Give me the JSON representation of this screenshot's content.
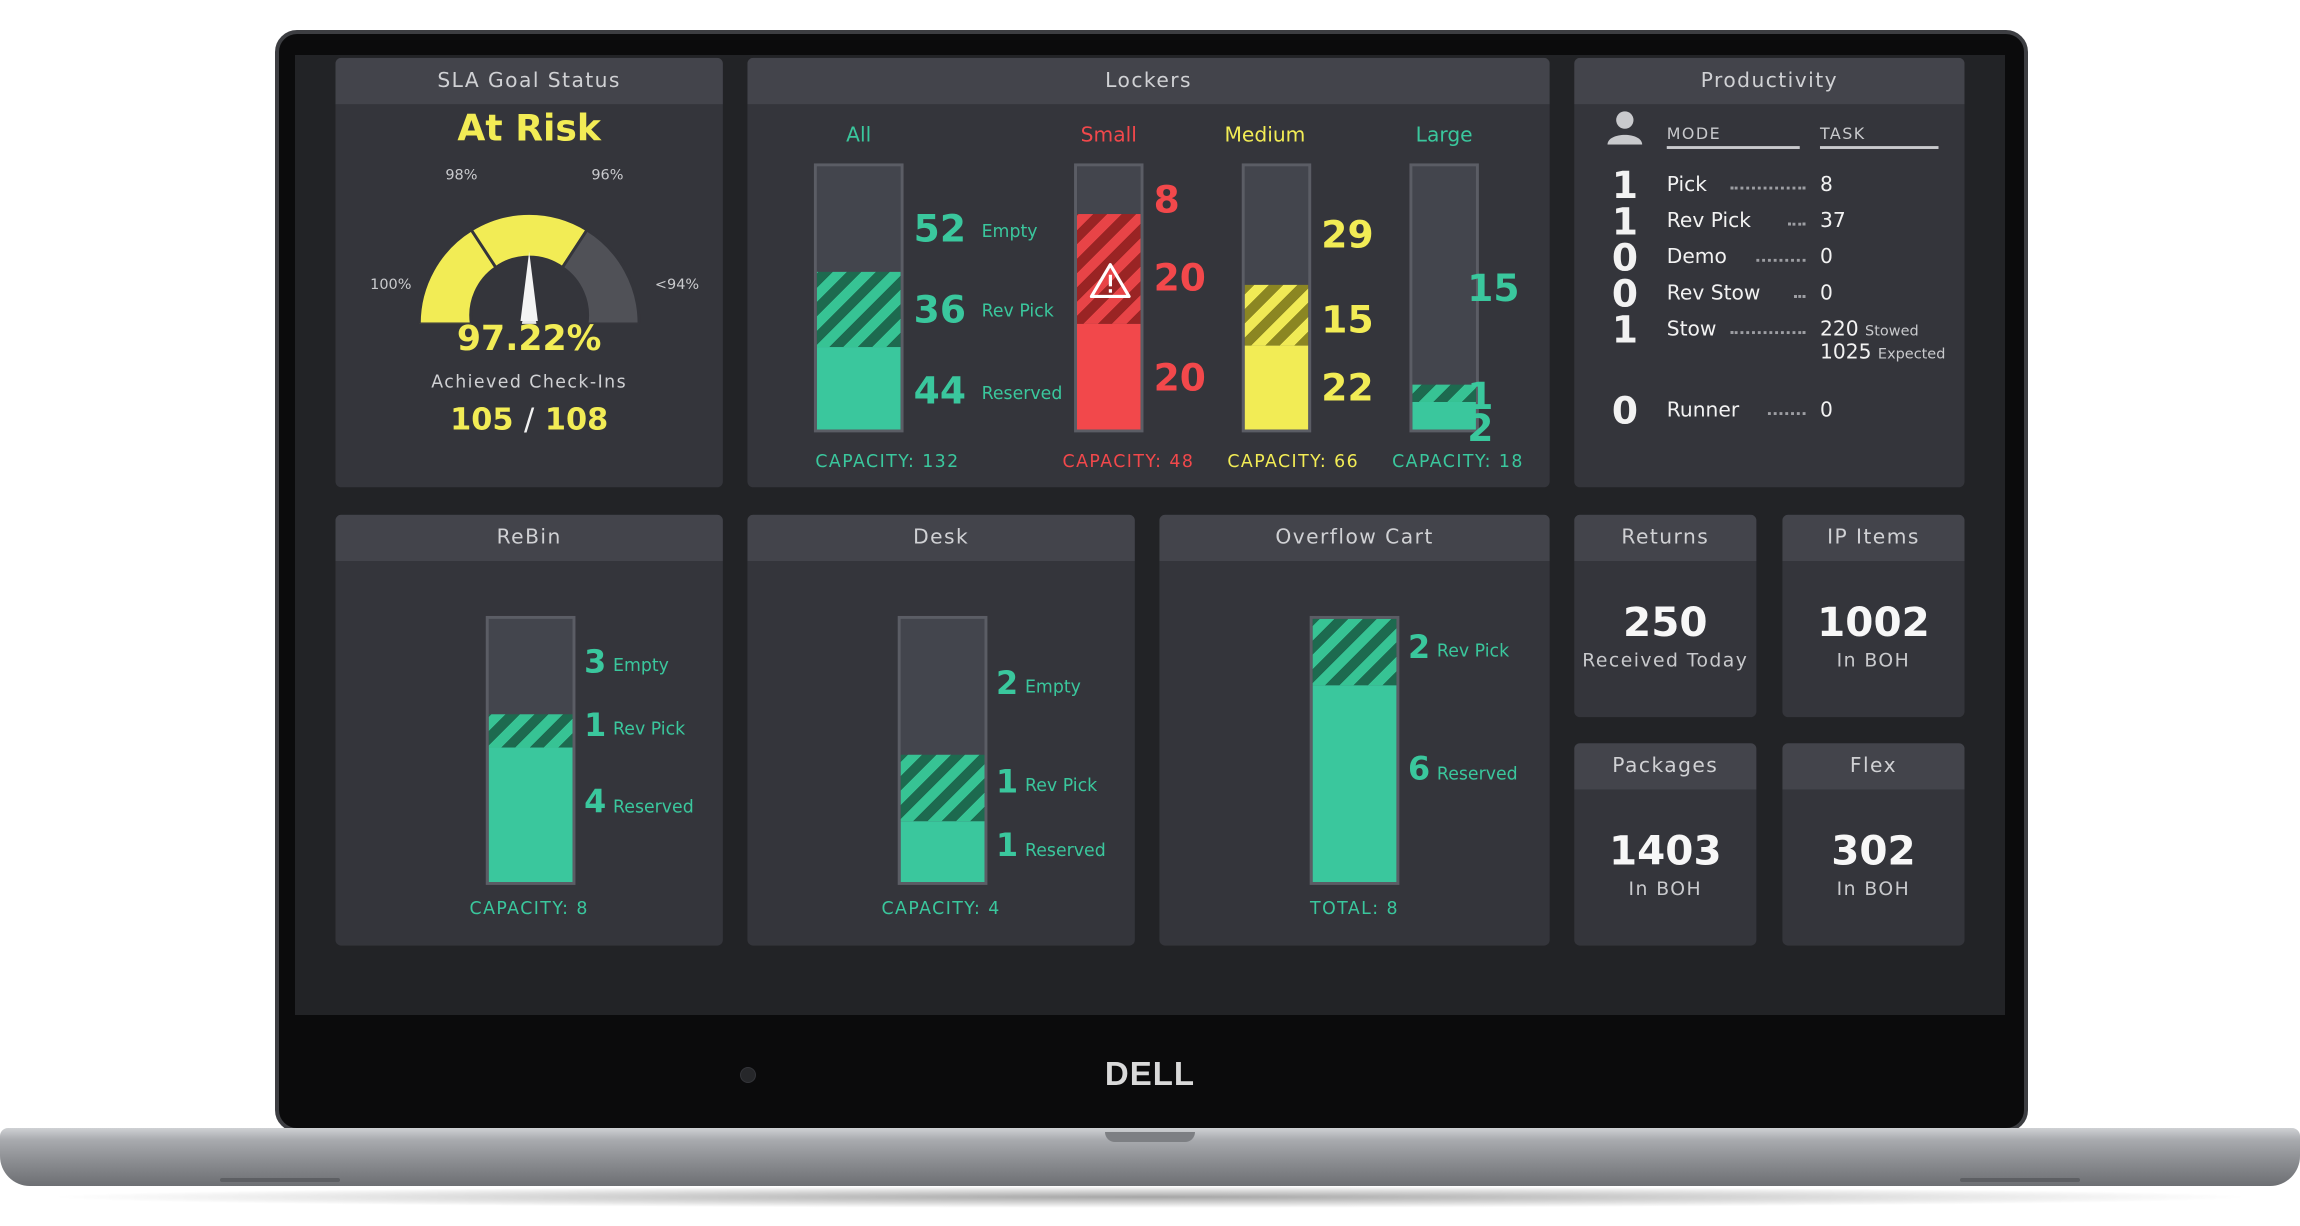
{
  "brand": "DELL",
  "sla": {
    "title": "SLA Goal Status",
    "status": "At Risk",
    "gauge_labels": {
      "p100": "100%",
      "p98": "98%",
      "p96": "96%",
      "p94": "<94%"
    },
    "gauge_value_percent": 97.22,
    "percent": "97.22%",
    "caption": "Achieved Check-Ins",
    "achieved": "105",
    "separator": "/",
    "total": "108",
    "colors": {
      "good": "#f2ec55",
      "warn": "#f2ec55",
      "bad": "#505157"
    }
  },
  "lockers": {
    "title": "Lockers",
    "groups": {
      "all": {
        "name": "All",
        "empty": 52,
        "empty_label": "Empty",
        "revpick": 36,
        "revpick_label": "Rev Pick",
        "reserved": 44,
        "reserved_label": "Reserved",
        "capacity": "CAPACITY: 132"
      },
      "small": {
        "name": "Small",
        "v1": "8",
        "v2": "20",
        "v3": "20",
        "capacity": "CAPACITY: 48"
      },
      "medium": {
        "name": "Medium",
        "v1": "29",
        "v2": "15",
        "v3": "22",
        "capacity": "CAPACITY: 66"
      },
      "large": {
        "name": "Large",
        "v1": "15",
        "v2": "1",
        "v3": "2",
        "capacity": "CAPACITY: 18"
      }
    }
  },
  "productivity": {
    "title": "Productivity",
    "col_mode": "MODE",
    "col_task": "TASK",
    "rows": [
      {
        "count": "1",
        "mode": "Pick",
        "task": "8"
      },
      {
        "count": "1",
        "mode": "Rev Pick",
        "task": "37"
      },
      {
        "count": "0",
        "mode": "Demo",
        "task": "0"
      },
      {
        "count": "0",
        "mode": "Rev Stow",
        "task": "0"
      },
      {
        "count": "1",
        "mode": "Stow",
        "task": "220",
        "task_sub": "Stowed",
        "task2": "1025",
        "task2_sub": "Expected"
      },
      {
        "count": "0",
        "mode": "Runner",
        "task": "0"
      }
    ]
  },
  "rebin": {
    "title": "ReBin",
    "empty": "3",
    "empty_label": "Empty",
    "revpick": "1",
    "revpick_label": "Rev Pick",
    "reserved": "4",
    "reserved_label": "Reserved",
    "capacity": "CAPACITY: 8"
  },
  "desk": {
    "title": "Desk",
    "empty": "2",
    "empty_label": "Empty",
    "revpick": "1",
    "revpick_label": "Rev Pick",
    "reserved": "1",
    "reserved_label": "Reserved",
    "capacity": "CAPACITY: 4"
  },
  "overflow": {
    "title": "Overflow Cart",
    "revpick": "2",
    "revpick_label": "Rev Pick",
    "reserved": "6",
    "reserved_label": "Reserved",
    "total": "TOTAL: 8"
  },
  "tiles": {
    "returns": {
      "title": "Returns",
      "value": "250",
      "label": "Received Today"
    },
    "ip_items": {
      "title": "IP Items",
      "value": "1002",
      "label": "In BOH"
    },
    "packages": {
      "title": "Packages",
      "value": "1403",
      "label": "In BOH"
    },
    "flex": {
      "title": "Flex",
      "value": "302",
      "label": "In BOH"
    }
  }
}
